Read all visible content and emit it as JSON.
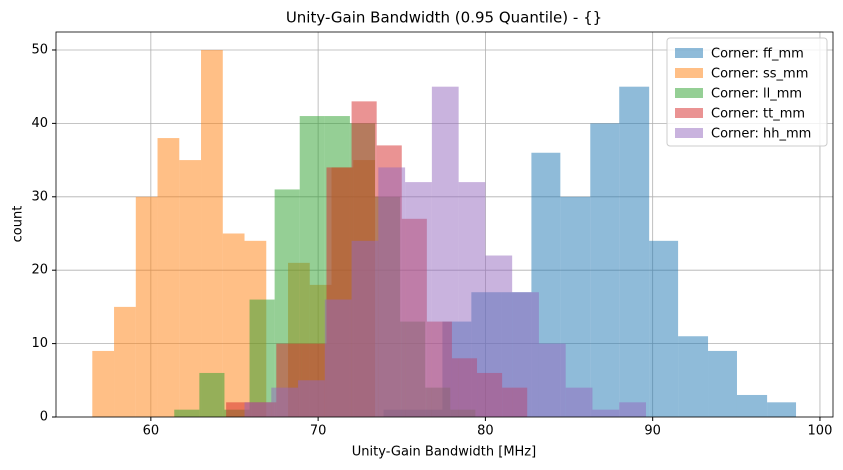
{
  "chart_data": {
    "type": "histogram",
    "title": "Unity-Gain Bandwidth (0.95 Quantile) - {}",
    "x_label": "Unity-Gain Bandwidth [MHz]",
    "y_label": "count",
    "xlim": [
      54.33,
      100.78
    ],
    "ylim": [
      0,
      52.45
    ],
    "xticks": [
      60,
      70,
      80,
      90,
      100
    ],
    "yticks": [
      0,
      10,
      20,
      30,
      40,
      50
    ],
    "grid": true,
    "legend": "upper right",
    "opacity": 0.5,
    "series": [
      {
        "name": "Corner: ff_mm",
        "color": "#1f77b4",
        "bins": [
          73.91,
          75.64,
          77.43,
          79.16,
          80.96,
          82.75,
          84.48,
          86.27,
          88.0,
          89.79,
          91.52,
          93.31,
          95.04,
          96.84,
          98.57
        ],
        "values": [
          1,
          1,
          13,
          17,
          17,
          36,
          30,
          40,
          45,
          24,
          11,
          9,
          3,
          2
        ]
      },
      {
        "name": "Corner: ss_mm",
        "color": "#ff7f0e",
        "bins": [
          56.5,
          57.8,
          59.1,
          60.4,
          61.7,
          63.0,
          64.3,
          65.6,
          66.9,
          68.2,
          69.5,
          70.8,
          72.1,
          73.4
        ],
        "values": [
          9,
          15,
          30,
          38,
          35,
          50,
          25,
          24,
          0,
          21,
          18,
          34,
          35
        ]
      },
      {
        "name": "Corner: ll_mm",
        "color": "#2ca02c",
        "bins": [
          61.4,
          62.9,
          64.4,
          65.9,
          67.4,
          68.9,
          70.4,
          71.9,
          73.4,
          74.9,
          76.4,
          77.9,
          79.4
        ],
        "values": [
          1,
          6,
          1,
          16,
          31,
          41,
          41,
          40,
          30,
          13,
          4,
          1
        ]
      },
      {
        "name": "Corner: tt_mm",
        "color": "#d62728",
        "bins": [
          64.5,
          66.0,
          67.5,
          69.0,
          70.5,
          72.0,
          73.5,
          75.0,
          76.5,
          78.0,
          79.5,
          81.0,
          82.5
        ],
        "values": [
          2,
          2,
          10,
          10,
          34,
          43,
          37,
          27,
          13,
          8,
          6,
          4
        ]
      },
      {
        "name": "Corner: hh_mm",
        "color": "#9467bd",
        "bins": [
          65.6,
          67.2,
          68.8,
          70.4,
          72.0,
          73.6,
          75.2,
          76.8,
          78.4,
          80.0,
          81.6,
          83.2,
          84.8,
          86.4,
          88.0,
          89.6
        ],
        "values": [
          2,
          4,
          5,
          16,
          24,
          34,
          32,
          45,
          32,
          22,
          17,
          10,
          4,
          1,
          2
        ]
      }
    ]
  }
}
